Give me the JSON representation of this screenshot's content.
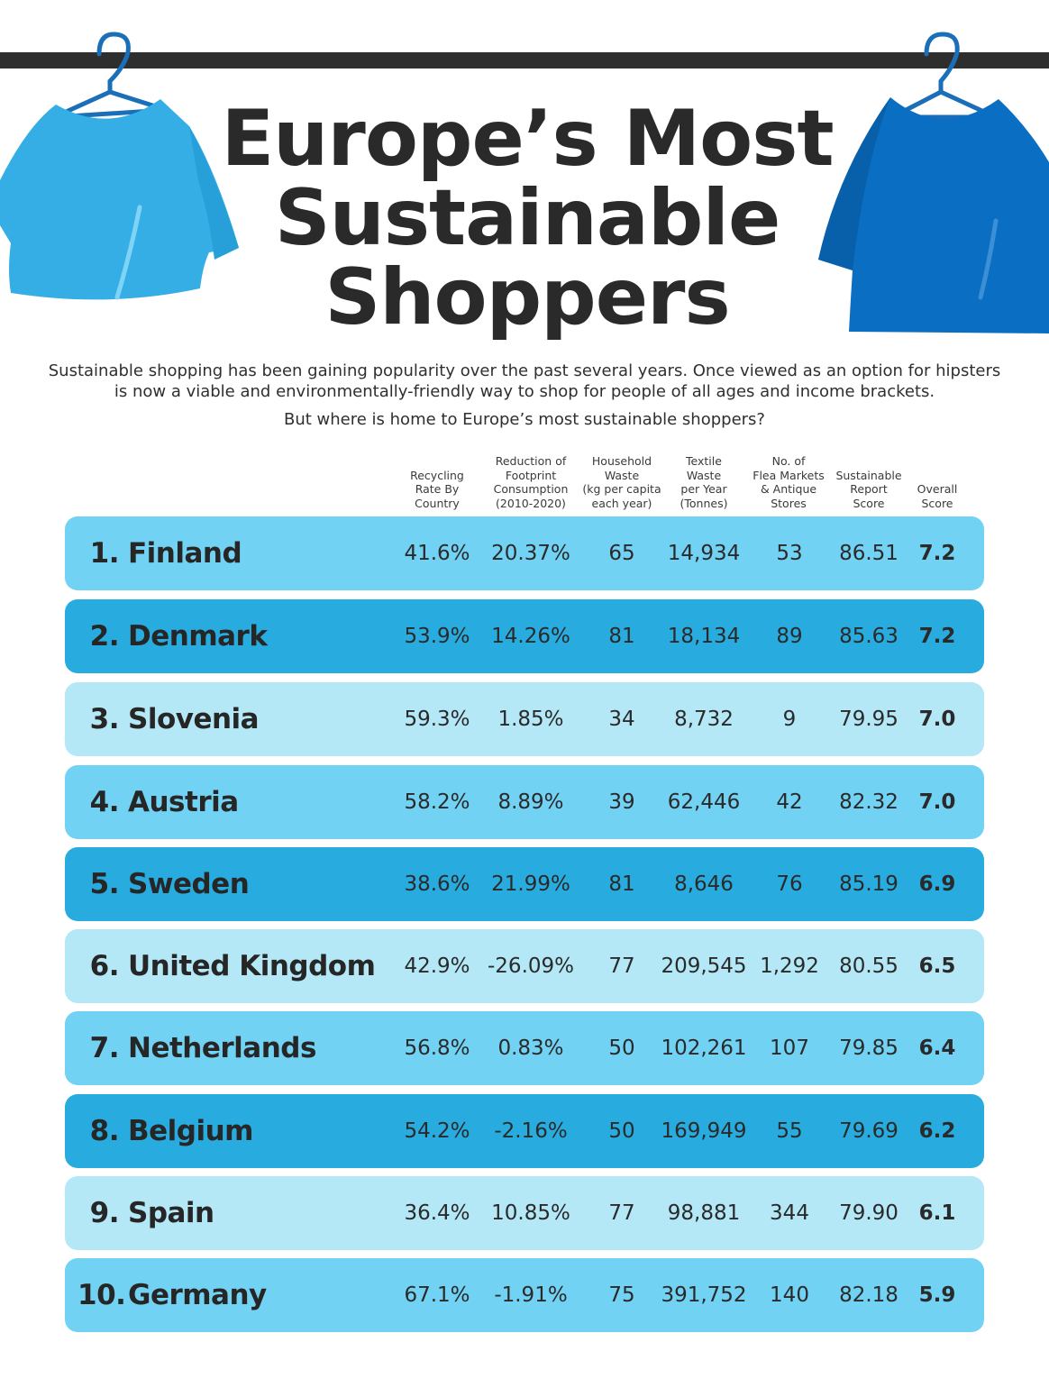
{
  "title_lines": [
    "Europe’s Most",
    "Sustainable",
    "Shoppers"
  ],
  "intro_text": "Sustainable shopping has been gaining popularity over the past several years. Once viewed as an option for hipsters is now a viable and environmentally-friendly way to shop for people of all ages and income brackets.",
  "question_text": "But where is home to Europe’s most sustainable shoppers?",
  "colors": {
    "rail": "#2e2e2e",
    "shirt_left": "#35aee6",
    "shirt_right": "#0a6fc2",
    "row_light": "#b4e8f7",
    "row_mid": "#72d2f4",
    "row_dark": "#28acdf",
    "title": "#2a2a2a"
  },
  "icons": [
    "hanger-icon",
    "tshirt-icon"
  ],
  "columns": [
    "Recycling\nRate By\nCountry",
    "Reduction of\nFootprint\nConsumption\n(2010-2020)",
    "Household\nWaste\n(kg per capita\neach year)",
    "Textile\nWaste\nper Year\n(Tonnes)",
    "No. of\nFlea Markets\n& Antique\nStores",
    "Sustainable\nReport\nScore",
    "Overall\nScore"
  ],
  "rows": [
    {
      "rank": "1.",
      "country": "Finland",
      "recycling": "41.6%",
      "reduction": "20.37%",
      "household": "65",
      "textile": "14,934",
      "flea": "53",
      "report": "86.51",
      "overall": "7.2",
      "shade": "mid"
    },
    {
      "rank": "2.",
      "country": "Denmark",
      "recycling": "53.9%",
      "reduction": "14.26%",
      "household": "81",
      "textile": "18,134",
      "flea": "89",
      "report": "85.63",
      "overall": "7.2",
      "shade": "dark"
    },
    {
      "rank": "3.",
      "country": "Slovenia",
      "recycling": "59.3%",
      "reduction": "1.85%",
      "household": "34",
      "textile": "8,732",
      "flea": "9",
      "report": "79.95",
      "overall": "7.0",
      "shade": "light"
    },
    {
      "rank": "4.",
      "country": "Austria",
      "recycling": "58.2%",
      "reduction": "8.89%",
      "household": "39",
      "textile": "62,446",
      "flea": "42",
      "report": "82.32",
      "overall": "7.0",
      "shade": "mid"
    },
    {
      "rank": "5.",
      "country": "Sweden",
      "recycling": "38.6%",
      "reduction": "21.99%",
      "household": "81",
      "textile": "8,646",
      "flea": "76",
      "report": "85.19",
      "overall": "6.9",
      "shade": "dark"
    },
    {
      "rank": "6.",
      "country": "United Kingdom",
      "recycling": "42.9%",
      "reduction": "-26.09%",
      "household": "77",
      "textile": "209,545",
      "flea": "1,292",
      "report": "80.55",
      "overall": "6.5",
      "shade": "light"
    },
    {
      "rank": "7.",
      "country": "Netherlands",
      "recycling": "56.8%",
      "reduction": "0.83%",
      "household": "50",
      "textile": "102,261",
      "flea": "107",
      "report": "79.85",
      "overall": "6.4",
      "shade": "mid"
    },
    {
      "rank": "8.",
      "country": "Belgium",
      "recycling": "54.2%",
      "reduction": "-2.16%",
      "household": "50",
      "textile": "169,949",
      "flea": "55",
      "report": "79.69",
      "overall": "6.2",
      "shade": "dark"
    },
    {
      "rank": "9.",
      "country": "Spain",
      "recycling": "36.4%",
      "reduction": "10.85%",
      "household": "77",
      "textile": "98,881",
      "flea": "344",
      "report": "79.90",
      "overall": "6.1",
      "shade": "light"
    },
    {
      "rank": "10.",
      "country": "Germany",
      "recycling": "67.1%",
      "reduction": "-1.91%",
      "household": "75",
      "textile": "391,752",
      "flea": "140",
      "report": "82.18",
      "overall": "5.9",
      "shade": "mid"
    }
  ]
}
